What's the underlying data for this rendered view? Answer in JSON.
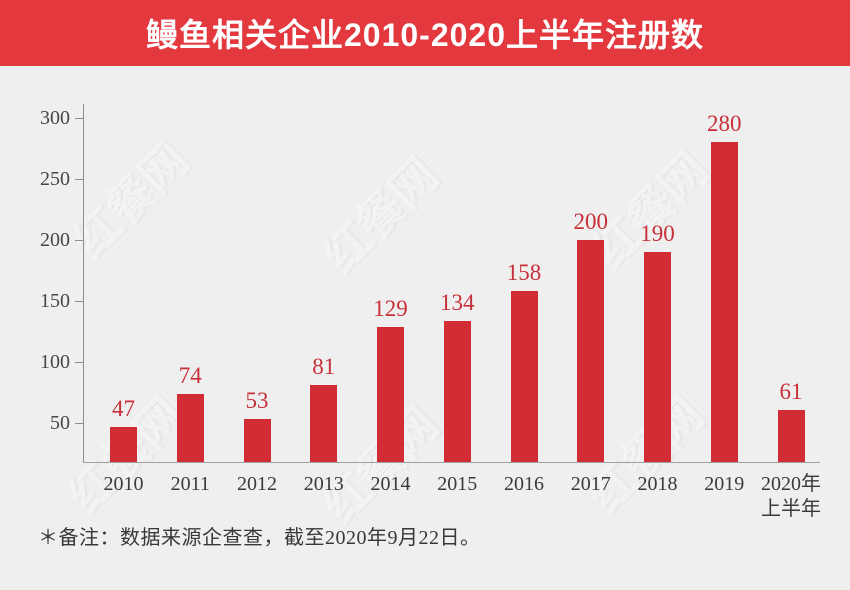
{
  "page": {
    "background": "#f0efef"
  },
  "header": {
    "title": "鳗鱼相关企业2010-2020上半年注册数",
    "background": "#e2383e",
    "text_color": "#ffffff"
  },
  "watermark": {
    "text": "红餐网"
  },
  "chart_data": {
    "type": "bar",
    "title": "鳗鱼相关企业2010-2020上半年注册数",
    "categories": [
      "2010",
      "2011",
      "2012",
      "2013",
      "2014",
      "2015",
      "2016",
      "2017",
      "2018",
      "2019",
      "2020年\n上半年"
    ],
    "values": [
      47,
      74,
      53,
      81,
      129,
      134,
      158,
      200,
      190,
      280,
      61
    ],
    "y_ticks": [
      300,
      250,
      100,
      50,
      150,
      200
    ],
    "ylim": [
      0,
      320
    ],
    "xlabel": "",
    "ylabel": "",
    "grid": false,
    "legend": "none",
    "bar_color": "#d22c34",
    "value_label_color": "#c72f39",
    "axis_line_color": "#8f8f8f",
    "tick_label_color": "#474747",
    "category_label_color": "#3a3a3a"
  },
  "footnote": {
    "text": "＊备注：数据来源企查查，截至2020年9月22日。"
  }
}
